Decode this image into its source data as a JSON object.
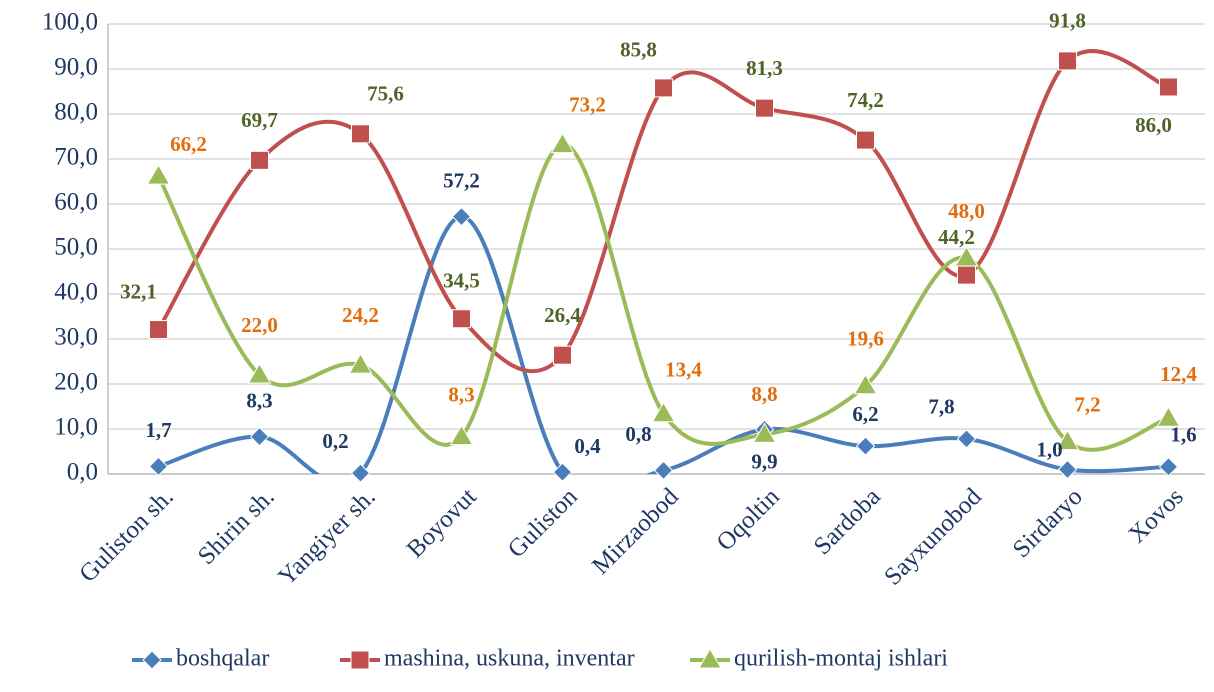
{
  "chart_data": {
    "type": "line",
    "categories": [
      "Guliston sh.",
      "Shirin sh.",
      "Yangiyer sh.",
      "Boyovut",
      "Guliston",
      "Mirzaobod",
      "Oqoltin",
      "Sardoba",
      "Sayxunobod",
      "Sirdaryo",
      "Xovos"
    ],
    "series": [
      {
        "name": "boshqalar",
        "color": "#4a7ebb",
        "label_color": "#1f3864",
        "marker": "diamond",
        "values": [
          1.7,
          8.3,
          0.2,
          57.2,
          0.4,
          0.8,
          9.9,
          6.2,
          7.8,
          1.0,
          1.6
        ],
        "value_labels": [
          "1,7",
          "8,3",
          "0,2",
          "57,2",
          "0,4",
          "0,8",
          "9,9",
          "6,2",
          "7,8",
          "1,0",
          "1,6"
        ]
      },
      {
        "name": "mashina, uskuna, inventar",
        "color": "#c0504d",
        "label_color": "#4f6228",
        "marker": "square",
        "values": [
          32.1,
          69.7,
          75.6,
          34.5,
          26.4,
          85.8,
          81.3,
          74.2,
          44.2,
          91.8,
          86.0
        ],
        "value_labels": [
          "32,1",
          "69,7",
          "75,6",
          "34,5",
          "26,4",
          "85,8",
          "81,3",
          "74,2",
          "44,2",
          "91,8",
          "86,0"
        ]
      },
      {
        "name": "qurilish-montaj ishlari",
        "color": "#9bbb59",
        "label_color": "#e46c0a",
        "marker": "triangle",
        "values": [
          66.2,
          22.0,
          24.2,
          8.3,
          73.2,
          13.4,
          8.8,
          19.6,
          48.0,
          7.2,
          12.4
        ],
        "value_labels": [
          "66,2",
          "22,0",
          "24,2",
          "8,3",
          "73,2",
          "13,4",
          "8,8",
          "19,6",
          "48,0",
          "7,2",
          "12,4"
        ]
      }
    ],
    "ylim": [
      0,
      100
    ],
    "yticks": [
      {
        "value": 0,
        "label": "0,0"
      },
      {
        "value": 10,
        "label": "10,0"
      },
      {
        "value": 20,
        "label": "20,0"
      },
      {
        "value": 30,
        "label": "30,0"
      },
      {
        "value": 40,
        "label": "40,0"
      },
      {
        "value": 50,
        "label": "50,0"
      },
      {
        "value": 60,
        "label": "60,0"
      },
      {
        "value": 70,
        "label": "70,0"
      },
      {
        "value": 80,
        "label": "80,0"
      },
      {
        "value": 90,
        "label": "90,0"
      },
      {
        "value": 100,
        "label": "100,0"
      }
    ],
    "grid": true,
    "legend": "bottom",
    "smooth": true
  }
}
